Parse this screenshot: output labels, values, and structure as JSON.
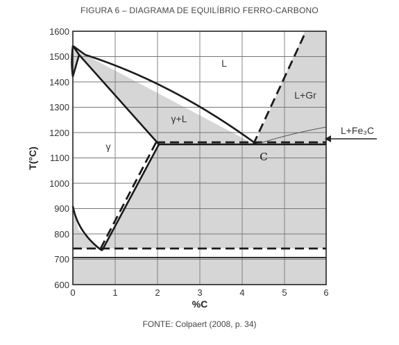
{
  "title": "FIGURA 6 – DIAGRAMA DE EQUILÍBRIO FERRO-CARBONO",
  "source": "FONTE: Colpaert (2008, p. 34)",
  "chart_data": {
    "type": "phase-diagram",
    "xlabel": "%C",
    "ylabel": "T(°C)",
    "xlim": [
      0,
      6
    ],
    "ylim": [
      600,
      1600
    ],
    "x_ticks": [
      "0",
      "1",
      "2",
      "3",
      "4",
      "5",
      "6"
    ],
    "y_ticks": [
      "600",
      "700",
      "800",
      "900",
      "1000",
      "1100",
      "1200",
      "1300",
      "1400",
      "1500",
      "1600"
    ],
    "regions": {
      "liquid": "L",
      "austenite_liquid": "γ+L",
      "austenite": "γ",
      "liquid_graphite": "L+Gr",
      "liquid_cementite": "L+Fe₃C",
      "point_c": "C"
    },
    "key_points": {
      "eutectic_temperature": 1148,
      "eutectic_composition": 4.3,
      "eutectoid_temperature": 727,
      "eutectoid_composition": 0.77,
      "max_austenite_solubility": 2.11
    },
    "colors": {
      "shade": "#d6d6d6",
      "line": "#1a1a1a",
      "grid": "#777777"
    }
  }
}
